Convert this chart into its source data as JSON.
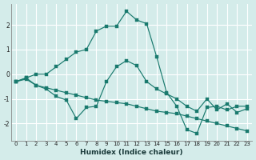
{
  "xlabel": "Humidex (Indice chaleur)",
  "background_color": "#d4ecea",
  "grid_color": "#ffffff",
  "line_color": "#1a7a6e",
  "xlim": [
    -0.5,
    23.5
  ],
  "ylim": [
    -2.7,
    2.85
  ],
  "xticks": [
    0,
    1,
    2,
    3,
    4,
    5,
    6,
    7,
    8,
    9,
    10,
    11,
    12,
    13,
    14,
    15,
    16,
    17,
    18,
    19,
    20,
    21,
    22,
    23
  ],
  "yticks": [
    -2,
    -1,
    0,
    1,
    2
  ],
  "s1_x": [
    0,
    1,
    2,
    3,
    4,
    5,
    6,
    7,
    8,
    9,
    10,
    11,
    12,
    13,
    14,
    15,
    16,
    17,
    18,
    19,
    20,
    21,
    22,
    23
  ],
  "s1_y": [
    -0.3,
    -0.15,
    0.0,
    0.0,
    0.3,
    0.6,
    0.9,
    1.0,
    1.75,
    1.95,
    1.95,
    2.55,
    2.2,
    2.05,
    0.7,
    -0.75,
    -1.3,
    -2.25,
    -2.4,
    -1.35,
    -1.3,
    -1.45,
    -1.3,
    -1.3
  ],
  "s2_x": [
    0,
    1,
    2,
    3,
    4,
    5,
    6,
    7,
    8,
    9,
    10,
    11,
    12,
    13,
    14,
    15,
    16,
    17,
    18,
    19,
    20,
    21,
    22,
    23
  ],
  "s2_y": [
    -0.3,
    -0.2,
    -0.45,
    -0.55,
    -0.65,
    -0.75,
    -0.85,
    -0.95,
    -1.05,
    -1.1,
    -1.15,
    -1.2,
    -1.3,
    -1.4,
    -1.5,
    -1.55,
    -1.6,
    -1.7,
    -1.8,
    -1.9,
    -2.0,
    -2.1,
    -2.2,
    -2.3
  ],
  "s3_x": [
    0,
    1,
    2,
    3,
    4,
    5,
    6,
    7,
    8,
    9,
    10,
    11,
    12,
    13,
    14,
    15,
    16,
    17,
    18,
    19,
    20,
    21,
    22,
    23
  ],
  "s3_y": [
    -0.3,
    -0.15,
    -0.45,
    -0.6,
    -0.9,
    -1.05,
    -1.8,
    -1.35,
    -1.3,
    -0.3,
    0.3,
    0.55,
    0.35,
    -0.3,
    -0.6,
    -0.8,
    -1.0,
    -1.3,
    -1.5,
    -1.0,
    -1.45,
    -1.2,
    -1.55,
    -1.4
  ]
}
